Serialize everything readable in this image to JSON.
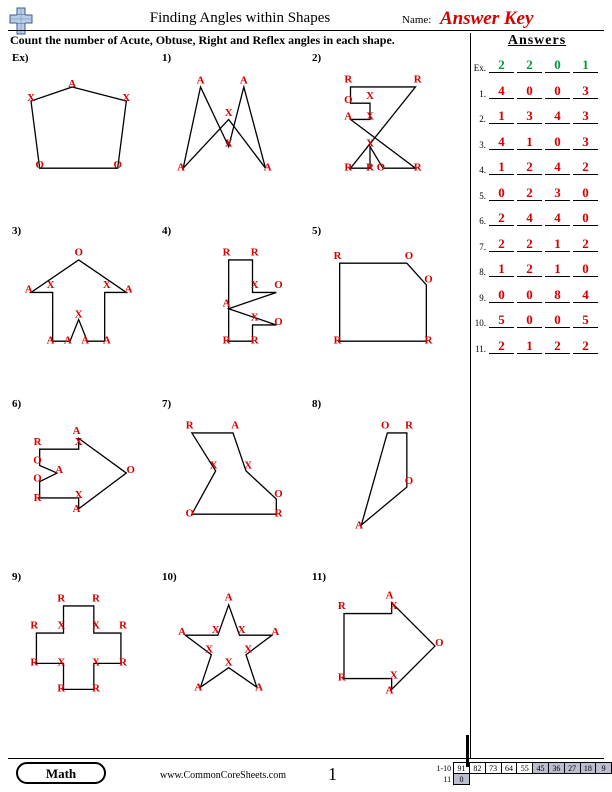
{
  "header": {
    "title": "Finding Angles within Shapes",
    "name_label": "Name:",
    "answer_key": "Answer Key",
    "instruction": "Count the number of Acute, Obtuse, Right and Reflex angles in each shape.",
    "color_answerkey": "#d60000"
  },
  "answers_panel": {
    "title": "Answers",
    "rows": [
      {
        "idx": "Ex.",
        "vals": [
          "2",
          "2",
          "0",
          "1"
        ],
        "color": "#009a3d"
      },
      {
        "idx": "1.",
        "vals": [
          "4",
          "0",
          "0",
          "3"
        ],
        "color": "#d60000"
      },
      {
        "idx": "2.",
        "vals": [
          "1",
          "3",
          "4",
          "3"
        ],
        "color": "#d60000"
      },
      {
        "idx": "3.",
        "vals": [
          "4",
          "1",
          "0",
          "3"
        ],
        "color": "#d60000"
      },
      {
        "idx": "4.",
        "vals": [
          "1",
          "2",
          "4",
          "2"
        ],
        "color": "#d60000"
      },
      {
        "idx": "5.",
        "vals": [
          "0",
          "2",
          "3",
          "0"
        ],
        "color": "#d60000"
      },
      {
        "idx": "6.",
        "vals": [
          "2",
          "4",
          "4",
          "0"
        ],
        "color": "#d60000"
      },
      {
        "idx": "7.",
        "vals": [
          "2",
          "2",
          "1",
          "2"
        ],
        "color": "#d60000"
      },
      {
        "idx": "8.",
        "vals": [
          "1",
          "2",
          "1",
          "0"
        ],
        "color": "#d60000"
      },
      {
        "idx": "9.",
        "vals": [
          "0",
          "0",
          "8",
          "4"
        ],
        "color": "#d60000"
      },
      {
        "idx": "10.",
        "vals": [
          "5",
          "0",
          "0",
          "5"
        ],
        "color": "#d60000"
      },
      {
        "idx": "11.",
        "vals": [
          "2",
          "1",
          "2",
          "2"
        ],
        "color": "#d60000"
      }
    ]
  },
  "shapes_grid": {
    "rows": [
      [
        {
          "lbl": "Ex)",
          "poly": "50,15 100,28 92,90 20,90 12,28",
          "verts": [
            [
              50,
              15,
              "A"
            ],
            [
              100,
              28,
              "X"
            ],
            [
              92,
              90,
              "O"
            ],
            [
              20,
              90,
              "O"
            ],
            [
              12,
              28,
              "X"
            ]
          ]
        },
        {
          "lbl": "1)",
          "poly": "30,15 56,70 70,15 90,90 56,45 14,90",
          "verts": [
            [
              30,
              12,
              "A"
            ],
            [
              56,
              70,
              "X"
            ],
            [
              70,
              12,
              "A"
            ],
            [
              92,
              92,
              "A"
            ],
            [
              56,
              42,
              "X"
            ],
            [
              12,
              92,
              "A"
            ]
          ]
        },
        {
          "lbl": "2)",
          "poly": "30,15 30,30 48,30 48,45 30,45 90,90 60,90 48,70 48,90 30,90 90,15",
          "verts": [
            [
              28,
              11,
              "R"
            ],
            [
              28,
              30,
              "O"
            ],
            [
              48,
              26,
              "X"
            ],
            [
              48,
              45,
              "X"
            ],
            [
              28,
              45,
              "A"
            ],
            [
              92,
              92,
              "R"
            ],
            [
              58,
              92,
              "O"
            ],
            [
              48,
              70,
              "X"
            ],
            [
              48,
              92,
              "R"
            ],
            [
              28,
              92,
              "R"
            ],
            [
              92,
              11,
              "R"
            ]
          ]
        }
      ],
      [
        {
          "lbl": "3)",
          "poly": "56,15 100,45 80,45 80,90 64,90 56,70 48,90 32,90 32,45 12,45",
          "verts": [
            [
              56,
              11,
              "O"
            ],
            [
              102,
              45,
              "A"
            ],
            [
              82,
              41,
              "X"
            ],
            [
              82,
              92,
              "A"
            ],
            [
              62,
              92,
              "A"
            ],
            [
              56,
              68,
              "X"
            ],
            [
              46,
              92,
              "A"
            ],
            [
              30,
              92,
              "A"
            ],
            [
              30,
              41,
              "X"
            ],
            [
              10,
              45,
              "A"
            ]
          ]
        },
        {
          "lbl": "4)",
          "poly": "56,15 78,15 78,45 100,45 56,60 100,75 78,75 78,90 56,90",
          "verts": [
            [
              54,
              11,
              "R"
            ],
            [
              80,
              11,
              "R"
            ],
            [
              80,
              41,
              "X"
            ],
            [
              102,
              41,
              "O"
            ],
            [
              54,
              58,
              "A"
            ],
            [
              102,
              75,
              "O"
            ],
            [
              80,
              71,
              "X"
            ],
            [
              80,
              92,
              "R"
            ],
            [
              54,
              92,
              "R"
            ]
          ]
        },
        {
          "lbl": "5)",
          "poly": "20,18 82,18 100,38 100,90 20,90",
          "verts": [
            [
              18,
              14,
              "R"
            ],
            [
              84,
              14,
              "O"
            ],
            [
              102,
              36,
              "O"
            ],
            [
              102,
              92,
              "R"
            ],
            [
              18,
              92,
              "R"
            ]
          ]
        }
      ],
      [
        {
          "lbl": "6)",
          "poly": "20,30 56,30 56,20 100,52 56,85 56,75 20,75 20,60 36,52 20,45",
          "verts": [
            [
              18,
              26,
              "R"
            ],
            [
              56,
              26,
              "X"
            ],
            [
              54,
              16,
              "A"
            ],
            [
              104,
              52,
              "O"
            ],
            [
              54,
              88,
              "A"
            ],
            [
              56,
              75,
              "X"
            ],
            [
              18,
              78,
              "R"
            ],
            [
              18,
              60,
              "O"
            ],
            [
              38,
              52,
              "A"
            ],
            [
              18,
              43,
              "O"
            ]
          ]
        },
        {
          "lbl": "7)",
          "poly": "22,15 60,15 72,50 100,76 100,90 22,90 44,50",
          "verts": [
            [
              20,
              11,
              "R"
            ],
            [
              62,
              11,
              "A"
            ],
            [
              74,
              48,
              "X"
            ],
            [
              102,
              74,
              "O"
            ],
            [
              102,
              92,
              "R"
            ],
            [
              20,
              92,
              "O"
            ],
            [
              42,
              48,
              "X"
            ]
          ]
        },
        {
          "lbl": "8)",
          "poly": "64,15 82,15 82,65 40,100",
          "verts": [
            [
              62,
              11,
              "O"
            ],
            [
              84,
              11,
              "R"
            ],
            [
              84,
              62,
              "O"
            ],
            [
              38,
              103,
              "A"
            ]
          ]
        }
      ],
      [
        {
          "lbl": "9)",
          "poly": "42,15 70,15 70,40 95,40 95,68 70,68 70,92 42,92 42,68 17,68 17,40 42,40",
          "verts": [
            [
              40,
              11,
              "R"
            ],
            [
              72,
              11,
              "R"
            ],
            [
              72,
              36,
              "X"
            ],
            [
              97,
              36,
              "R"
            ],
            [
              97,
              70,
              "R"
            ],
            [
              72,
              70,
              "X"
            ],
            [
              72,
              94,
              "R"
            ],
            [
              40,
              94,
              "R"
            ],
            [
              40,
              70,
              "X"
            ],
            [
              15,
              70,
              "R"
            ],
            [
              15,
              36,
              "R"
            ],
            [
              40,
              36,
              "X"
            ]
          ]
        },
        {
          "lbl": "10)",
          "poly": "56,14 66,42 96,42 72,60 82,90 56,72 30,90 40,60 16,42 46,42",
          "verts": [
            [
              56,
              10,
              "A"
            ],
            [
              68,
              40,
              "X"
            ],
            [
              99,
              42,
              "A"
            ],
            [
              74,
              58,
              "X"
            ],
            [
              84,
              93,
              "A"
            ],
            [
              56,
              70,
              "X"
            ],
            [
              28,
              93,
              "A"
            ],
            [
              38,
              58,
              "X"
            ],
            [
              13,
              42,
              "A"
            ],
            [
              44,
              40,
              "X"
            ]
          ]
        },
        {
          "lbl": "11)",
          "poly": "24,22 68,22 68,12 108,52 68,92 68,82 24,82",
          "verts": [
            [
              22,
              18,
              "R"
            ],
            [
              70,
              18,
              "X"
            ],
            [
              66,
              8,
              "A"
            ],
            [
              112,
              52,
              "O"
            ],
            [
              66,
              96,
              "A"
            ],
            [
              70,
              82,
              "X"
            ],
            [
              22,
              84,
              "R"
            ]
          ]
        }
      ]
    ]
  },
  "footer": {
    "math_label": "Math",
    "url": "www.CommonCoreSheets.com",
    "page_number": "1",
    "score_strip": {
      "rows": [
        {
          "lab": "1-10",
          "cells": [
            "91",
            "82",
            "73",
            "64",
            "55",
            "45",
            "36",
            "27",
            "18",
            "9"
          ],
          "shade_from": 5
        },
        {
          "lab": "11",
          "cells": [
            "0"
          ],
          "shade_from": 0
        }
      ]
    }
  }
}
